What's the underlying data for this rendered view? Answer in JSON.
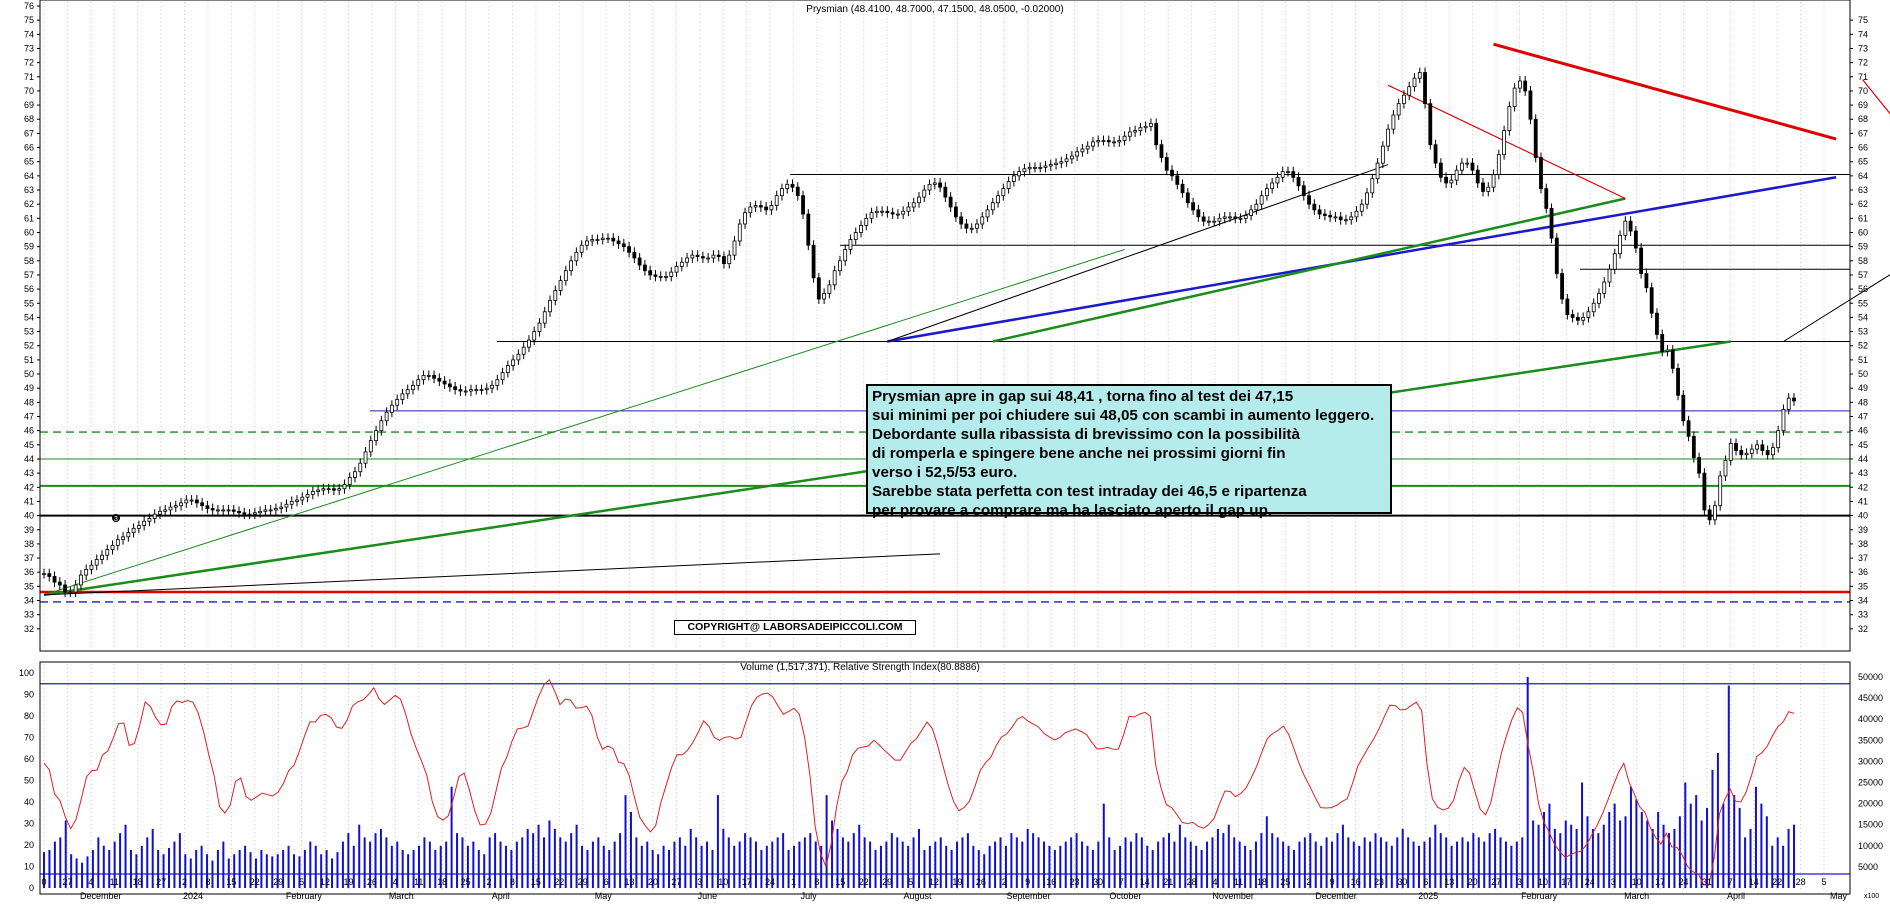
{
  "chart_data": [
    {
      "type": "candlestick",
      "title": "Prysmian (48.4100, 48.7000, 47.1500, 48.0500, -0.02000)",
      "ylim": [
        31,
        76
      ],
      "y_ticks": [
        32,
        33,
        34,
        35,
        36,
        37,
        38,
        39,
        40,
        41,
        42,
        43,
        44,
        45,
        46,
        47,
        48,
        49,
        50,
        51,
        52,
        53,
        54,
        55,
        56,
        57,
        58,
        59,
        60,
        61,
        62,
        63,
        64,
        65,
        66,
        67,
        68,
        69,
        70,
        71,
        72,
        73,
        74,
        75,
        76
      ],
      "y_ticks_right": [
        32,
        33,
        34,
        35,
        36,
        37,
        38,
        39,
        40,
        41,
        42,
        43,
        44,
        45,
        46,
        47,
        48,
        49,
        50,
        51,
        52,
        53,
        54,
        55,
        56,
        57,
        58,
        59,
        60,
        61,
        62,
        63,
        64,
        65,
        66,
        67,
        68,
        69,
        70,
        71,
        72,
        73,
        74,
        75
      ],
      "x_day_labels": [
        "0",
        "27",
        "4",
        "11",
        "18",
        "27",
        "2",
        "8",
        "15",
        "22",
        "29",
        "5",
        "12",
        "19",
        "26",
        "4",
        "11",
        "18",
        "25",
        "2",
        "8",
        "15",
        "22",
        "29",
        "6",
        "13",
        "20",
        "27",
        "3",
        "10",
        "17",
        "24",
        "1",
        "8",
        "15",
        "22",
        "29",
        "5",
        "12",
        "19",
        "26",
        "2",
        "9",
        "16",
        "23",
        "30",
        "7",
        "14",
        "21",
        "28",
        "4",
        "11",
        "18",
        "25",
        "2",
        "9",
        "16",
        "23",
        "30",
        "6",
        "13",
        "20",
        "27",
        "3",
        "10",
        "17",
        "24",
        "3",
        "10",
        "17",
        "24",
        "31",
        "7",
        "14",
        "22",
        "28",
        "5"
      ],
      "x_month_labels": [
        "December",
        "2024",
        "February",
        "March",
        "April",
        "May",
        "June",
        "July",
        "August",
        "September",
        "October",
        "November",
        "December",
        "2025",
        "February",
        "March",
        "April",
        "May"
      ],
      "series_close": [
        35.9,
        35.7,
        35.3,
        35.1,
        34.6,
        34.6,
        35.1,
        35.8,
        36.2,
        36.5,
        36.9,
        37.2,
        37.6,
        37.9,
        38.3,
        38.5,
        38.8,
        39.1,
        39.3,
        39.6,
        39.8,
        40.1,
        40.3,
        40.4,
        40.6,
        40.7,
        40.9,
        41.1,
        41.1,
        40.9,
        40.7,
        40.5,
        40.4,
        40.4,
        40.4,
        40.4,
        40.3,
        40.2,
        40.1,
        40.1,
        40.2,
        40.3,
        40.4,
        40.4,
        40.5,
        40.6,
        40.8,
        41.0,
        41.1,
        41.3,
        41.5,
        41.7,
        41.8,
        41.9,
        41.9,
        41.8,
        41.9,
        42.2,
        42.7,
        43.1,
        43.7,
        44.5,
        45.3,
        46.0,
        46.7,
        47.3,
        47.8,
        48.2,
        48.6,
        48.9,
        49.2,
        49.6,
        49.9,
        49.9,
        49.7,
        49.5,
        49.3,
        49.1,
        48.9,
        48.8,
        48.8,
        48.9,
        48.9,
        48.9,
        49.0,
        49.2,
        49.6,
        50.1,
        50.6,
        51.0,
        51.4,
        51.9,
        52.4,
        53.0,
        53.6,
        54.4,
        55.2,
        55.9,
        56.6,
        57.3,
        58.0,
        58.6,
        59.1,
        59.4,
        59.5,
        59.5,
        59.6,
        59.6,
        59.4,
        59.2,
        59.0,
        58.6,
        58.2,
        57.7,
        57.3,
        57.0,
        56.9,
        56.9,
        56.9,
        57.2,
        57.6,
        57.9,
        58.2,
        58.4,
        58.3,
        58.2,
        58.2,
        58.4,
        58.3,
        57.8,
        58.4,
        59.4,
        60.6,
        61.4,
        61.8,
        61.9,
        61.8,
        61.6,
        61.9,
        62.6,
        63.1,
        63.4,
        63.2,
        62.6,
        61.3,
        59.1,
        56.8,
        55.3,
        55.7,
        56.3,
        57.3,
        58.0,
        58.8,
        59.5,
        60.0,
        60.5,
        61.0,
        61.4,
        61.5,
        61.5,
        61.4,
        61.3,
        61.3,
        61.5,
        61.8,
        62.1,
        62.5,
        63.0,
        63.4,
        63.5,
        63.2,
        62.5,
        61.8,
        61.1,
        60.6,
        60.3,
        60.3,
        60.6,
        61.1,
        61.6,
        62.1,
        62.6,
        63.1,
        63.6,
        64.0,
        64.3,
        64.5,
        64.6,
        64.6,
        64.6,
        64.7,
        64.8,
        64.9,
        65.0,
        65.2,
        65.4,
        65.7,
        65.9,
        66.1,
        66.4,
        66.5,
        66.5,
        66.4,
        66.4,
        66.5,
        66.8,
        67.1,
        67.2,
        67.4,
        67.5,
        67.7,
        66.2,
        65.3,
        64.4,
        64.0,
        63.4,
        62.8,
        62.1,
        61.6,
        61.1,
        60.8,
        60.8,
        60.8,
        61.0,
        61.1,
        61.1,
        61.0,
        61.0,
        61.2,
        61.6,
        62.0,
        62.6,
        63.1,
        63.5,
        63.9,
        64.3,
        64.3,
        63.9,
        63.3,
        62.6,
        62.0,
        61.6,
        61.3,
        61.2,
        61.1,
        61.1,
        60.9,
        60.9,
        61.1,
        61.5,
        62.0,
        62.8,
        63.8,
        64.9,
        66.1,
        67.3,
        68.3,
        69.1,
        69.7,
        70.3,
        70.9,
        71.3,
        69.1,
        66.2,
        64.9,
        63.9,
        63.5,
        63.7,
        64.4,
        64.9,
        64.9,
        64.4,
        63.5,
        62.9,
        63.2,
        64.1,
        65.5,
        67.2,
        68.9,
        70.2,
        70.7,
        70.0,
        68.0,
        65.3,
        63.1,
        61.7,
        59.6,
        57.1,
        55.3,
        54.2,
        54.0,
        53.8,
        54.0,
        54.4,
        55.0,
        55.7,
        56.5,
        57.4,
        58.5,
        59.8,
        60.8,
        60.1,
        58.9,
        57.1,
        56.1,
        54.3,
        52.8,
        51.6,
        51.7,
        50.4,
        48.5,
        46.7,
        45.6,
        44.1,
        43.0,
        40.4,
        39.7,
        40.7,
        42.8,
        43.9,
        45.1,
        44.6,
        44.3,
        44.4,
        44.7,
        45.0,
        44.6,
        44.3,
        44.8,
        46.0,
        47.5,
        48.3,
        48.1
      ],
      "horizontal_levels": [
        34.6,
        33.9,
        40.0,
        42.1,
        44.0,
        45.9,
        47.4,
        52.3,
        57.4,
        59.1,
        64.1
      ],
      "rsi_ylim": [
        0,
        100
      ],
      "rsi_ticks": [
        0,
        10,
        20,
        30,
        40,
        50,
        60,
        70,
        80,
        90,
        100
      ],
      "volume_ticks": [
        5000,
        10000,
        15000,
        20000,
        25000,
        30000,
        35000,
        40000,
        45000,
        50000
      ],
      "rsi_caption": "Volume (1,517,371), Relative Strength Index(80.8886)",
      "rsi_values": [
        58.1,
        55.0,
        43.7,
        40.6,
        33.1,
        27.6,
        31.8,
        41.2,
        51.8,
        54.6,
        54.9,
        61.8,
        63.7,
        69.6,
        76.4,
        76.8,
        66.3,
        67.2,
        75.6,
        86.5,
        84.4,
        79.3,
        75.9,
        76.3,
        84.3,
        87.0,
        86.3,
        87.2,
        86.4,
        81.3,
        72.6,
        61.8,
        52.2,
        37.8,
        34.9,
        38.5,
        49.6,
        51.2,
        42.5,
        40.8,
        42.4,
        44.2,
        43.4,
        42.8,
        44.6,
        48.6,
        54.6,
        57.1,
        63.5,
        70.8,
        77.3,
        77.2,
        80.3,
        80.8,
        79.1,
        74.8,
        74.3,
        78.2,
        84.7,
        86.6,
        87.5,
        90.0,
        93.1,
        88.0,
        85.4,
        87.4,
        89.6,
        87.9,
        80.9,
        71.7,
        64.9,
        58.9,
        52.1,
        40.2,
        33.2,
        31.6,
        33.6,
        42.0,
        51.8,
        53.4,
        45.4,
        35.7,
        29.3,
        29.7,
        34.8,
        45.3,
        55.7,
        60.9,
        68.4,
        74.0,
        74.4,
        75.3,
        82.4,
        89.2,
        94.5,
        96.9,
        91.7,
        85.3,
        87.8,
        87.4,
        83.7,
        83.8,
        84.6,
        80.3,
        70.3,
        64.6,
        66.1,
        64.8,
        58.5,
        57.9,
        52.4,
        42.3,
        33.0,
        29.1,
        26.1,
        29.0,
        40.0,
        48.0,
        56.2,
        62.0,
        61.9,
        64.1,
        67.7,
        72.5,
        77.7,
        75.2,
        70.0,
        68.7,
        70.1,
        70.4,
        69.3,
        70.0,
        77.4,
        84.7,
        88.7,
        90.2,
        90.7,
        88.9,
        84.7,
        80.8,
        82.1,
        83.6,
        80.9,
        70.2,
        52.2,
        28.1,
        16.0,
        10.0,
        20.4,
        37.8,
        49.6,
        54.0,
        61.9,
        65.0,
        65.6,
        66.1,
        68.7,
        66.6,
        64.1,
        61.8,
        59.5,
        59.5,
        63.5,
        67.3,
        69.4,
        73.3,
        77.2,
        74.2,
        66.4,
        57.0,
        47.7,
        40.2,
        35.9,
        37.5,
        40.4,
        47.1,
        54.6,
        58.3,
        60.7,
        66.2,
        70.2,
        71.7,
        74.8,
        78.6,
        79.7,
        77.6,
        76.3,
        74.8,
        71.9,
        70.3,
        68.9,
        70.0,
        72.3,
        73.1,
        74.0,
        72.8,
        71.3,
        67.7,
        64.6,
        64.9,
        65.4,
        64.5,
        64.6,
        71.6,
        79.8,
        79.6,
        80.9,
        81.7,
        79.8,
        57.1,
        46.6,
        38.8,
        37.4,
        34.0,
        30.4,
        30.0,
        30.5,
        28.7,
        27.8,
        29.6,
        32.5,
        39.1,
        45.1,
        44.9,
        42.5,
        44.0,
        46.6,
        51.4,
        56.8,
        63.5,
        69.6,
        71.8,
        73.3,
        75.3,
        71.4,
        64.7,
        57.7,
        51.9,
        47.1,
        42.0,
        37.4,
        37.2,
        37.4,
        38.4,
        40.2,
        41.5,
        48.6,
        56.7,
        61.1,
        65.5,
        69.4,
        74.1,
        79.7,
        85.0,
        84.9,
        82.8,
        83.0,
        84.8,
        86.4,
        82.5,
        57.5,
        41.6,
        37.6,
        36.3,
        37.1,
        40.8,
        49.8,
        56.1,
        53.5,
        45.0,
        36.6,
        34.1,
        39.6,
        51.5,
        62.8,
        71.3,
        78.6,
        83.8,
        81.5,
        66.5,
        53.8,
        38.9,
        30.6,
        25.8,
        20.2,
        16.8,
        14.2,
        15.5,
        16.6,
        17.1,
        20.2,
        24.8,
        29.2,
        34.6,
        40.8,
        47.4,
        53.7,
        58.0,
        49.2,
        43.6,
        37.7,
        35.1,
        27.9,
        23.4,
        20.4,
        25.5,
        19.1,
        18.9,
        15.3,
        10.0,
        7.6,
        6.6,
        1.4,
        1.4,
        14.0,
        34.5,
        41.3,
        46.0,
        40.4,
        40.0,
        44.6,
        52.2,
        61.2,
        63.0,
        66.1,
        71.0,
        75.1,
        77.4,
        82.0,
        81.2
      ],
      "volume_values": [
        8500,
        9000,
        11000,
        12000,
        16000,
        8000,
        7000,
        6000,
        7500,
        9000,
        12000,
        10000,
        9000,
        11000,
        13000,
        15000,
        9000,
        8000,
        10000,
        12000,
        14000,
        9000,
        8000,
        9500,
        11000,
        13000,
        8000,
        7000,
        9000,
        10000,
        8000,
        6500,
        9000,
        11000,
        7000,
        8000,
        9000,
        10000,
        8500,
        7000,
        9000,
        8000,
        7500,
        8000,
        9000,
        10000,
        8000,
        7500,
        9000,
        11000,
        10000,
        8000,
        9000,
        7000,
        8500,
        11000,
        13000,
        10000,
        15000,
        12000,
        11000,
        13000,
        14000,
        12000,
        10000,
        11000,
        9000,
        8000,
        9000,
        10000,
        12000,
        11000,
        9000,
        10000,
        11000,
        24000,
        13000,
        12000,
        10000,
        11000,
        9000,
        8000,
        12000,
        13000,
        11000,
        10000,
        9000,
        11000,
        12000,
        14000,
        13000,
        15000,
        12000,
        16000,
        14000,
        12000,
        11000,
        13000,
        15000,
        10000,
        9000,
        11000,
        12000,
        10000,
        9000,
        11000,
        13000,
        22000,
        18000,
        12000,
        10000,
        11000,
        9000,
        8000,
        10000,
        9000,
        11000,
        12000,
        10000,
        14000,
        12000,
        10000,
        11000,
        9000,
        22000,
        14000,
        12000,
        10000,
        11000,
        13000,
        12000,
        11000,
        9000,
        10000,
        11000,
        12000,
        13000,
        9000,
        10000,
        11000,
        12000,
        13000,
        11000,
        10000,
        22000,
        16000,
        14000,
        12000,
        11000,
        13000,
        15000,
        12000,
        11000,
        9000,
        10000,
        11000,
        13000,
        12000,
        11000,
        10000,
        12000,
        14000,
        9000,
        10000,
        11000,
        12000,
        10000,
        9000,
        11000,
        12000,
        13000,
        10000,
        9000,
        8000,
        10000,
        11000,
        12000,
        10000,
        13000,
        12000,
        11000,
        14000,
        13000,
        12000,
        11000,
        10000,
        9000,
        10000,
        11000,
        12000,
        13000,
        11000,
        10000,
        9000,
        11000,
        20000,
        12000,
        9000,
        10000,
        12000,
        11000,
        13000,
        12000,
        10000,
        9000,
        11000,
        12000,
        13000,
        11000,
        15000,
        12000,
        11000,
        10000,
        9000,
        11000,
        12000,
        14000,
        13000,
        15000,
        12000,
        11000,
        10000,
        9000,
        11000,
        13000,
        17000,
        13000,
        12000,
        11000,
        10000,
        9000,
        11000,
        12000,
        13000,
        11000,
        10000,
        12000,
        11000,
        13000,
        15000,
        12000,
        11000,
        10000,
        12000,
        11000,
        13000,
        12000,
        11000,
        10000,
        12000,
        14000,
        12000,
        11000,
        10000,
        11000,
        12000,
        15000,
        13000,
        12000,
        10000,
        11000,
        12000,
        11000,
        13000,
        12000,
        11000,
        13000,
        14000,
        12000,
        11000,
        10000,
        11000,
        12000,
        50000,
        16000,
        15000,
        18000,
        20000,
        14000,
        13000,
        16000,
        15000,
        14000,
        25000,
        17000,
        14000,
        13000,
        15000,
        18000,
        20000,
        16000,
        17000,
        24000,
        21000,
        18000,
        16000,
        14000,
        18000,
        15000,
        13000,
        14000,
        17000,
        25000,
        20000,
        22000,
        16000,
        19000,
        28000,
        32000,
        20000,
        48000,
        22000,
        19000,
        12000,
        14000,
        24000,
        20000,
        17000,
        10000,
        12000,
        10000,
        14000,
        15000
      ],
      "x_label_note": ""
    }
  ],
  "annotation": {
    "lines": [
      "Prysmian apre in gap sui 48,41 , torna fino al test dei 47,15",
      "sui minimi per poi chiudere sui 48,05 con scambi in aumento leggero.",
      "Debordante sulla ribassista di brevissimo con la possibilità",
      "di romperla e spingere bene anche nei prossimi giorni fin",
      "verso i 52,5/53 euro.",
      "Sarebbe stata perfetta con test intraday dei 46,5 e ripartenza",
      "per provare a comprare ma ha lasciato aperto il gap up."
    ],
    "copyright": "COPYRIGHT@ LABORSADEIPICCOLI.COM",
    "marker_number": "3",
    "volume_axis_note": "x100"
  },
  "colors": {
    "price": "#000000",
    "rsi": "#e02020",
    "volume": "#1010d0",
    "support_red": "#e00000",
    "trend_blue": "#1a1acc",
    "trend_green": "#1a8c1a",
    "note_bg": "#b4ecec"
  }
}
